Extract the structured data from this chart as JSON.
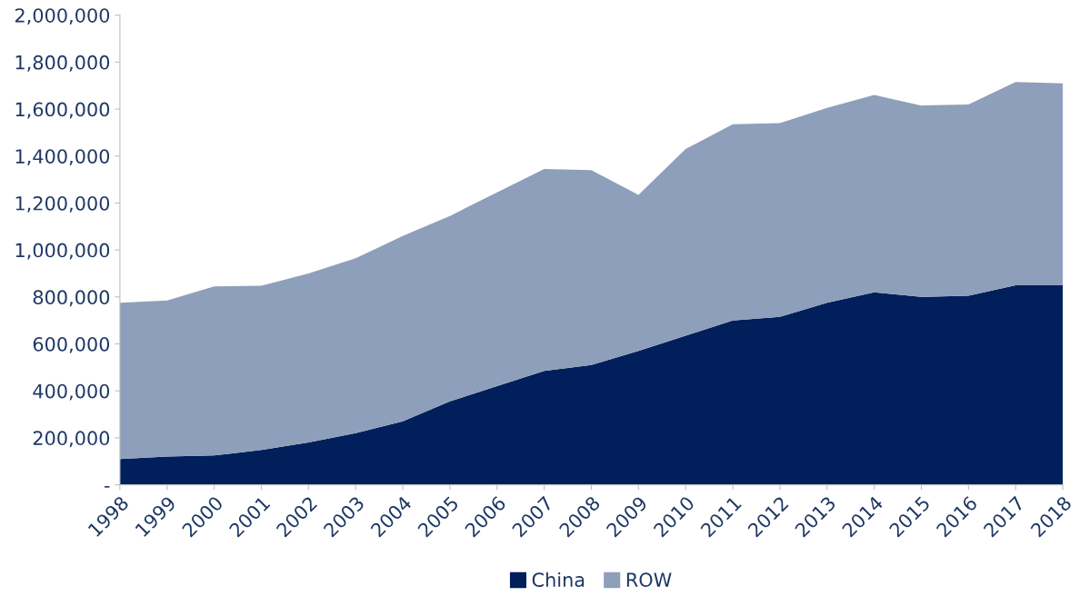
{
  "chart_data": {
    "type": "area",
    "stacked": true,
    "categories": [
      "1998",
      "1999",
      "2000",
      "2001",
      "2002",
      "2003",
      "2004",
      "2005",
      "2006",
      "2007",
      "2008",
      "2009",
      "2010",
      "2011",
      "2012",
      "2013",
      "2014",
      "2015",
      "2016",
      "2017",
      "2018"
    ],
    "series": [
      {
        "name": "China",
        "color": "#001f5b",
        "values": [
          110000,
          120000,
          125000,
          148000,
          180000,
          220000,
          270000,
          355000,
          420000,
          485000,
          510000,
          570000,
          635000,
          700000,
          715000,
          775000,
          820000,
          800000,
          805000,
          850000,
          850000
        ]
      },
      {
        "name": "ROW",
        "color": "#8e9fbb",
        "values": [
          665000,
          665000,
          720000,
          700000,
          720000,
          745000,
          790000,
          790000,
          825000,
          860000,
          830000,
          665000,
          795000,
          835000,
          825000,
          830000,
          840000,
          815000,
          815000,
          865000,
          860000
        ]
      }
    ],
    "ylim": [
      0,
      2000000
    ],
    "yticks": [
      {
        "value": 0,
        "label": "-"
      },
      {
        "value": 200000,
        "label": "200,000"
      },
      {
        "value": 400000,
        "label": "400,000"
      },
      {
        "value": 600000,
        "label": "600,000"
      },
      {
        "value": 800000,
        "label": "800,000"
      },
      {
        "value": 1000000,
        "label": "1,000,000"
      },
      {
        "value": 1200000,
        "label": "1,200,000"
      },
      {
        "value": 1400000,
        "label": "1,400,000"
      },
      {
        "value": 1600000,
        "label": "1,600,000"
      },
      {
        "value": 1800000,
        "label": "1,800,000"
      },
      {
        "value": 2000000,
        "label": "2,000,000"
      }
    ],
    "grid": false,
    "legend": "bottom"
  }
}
